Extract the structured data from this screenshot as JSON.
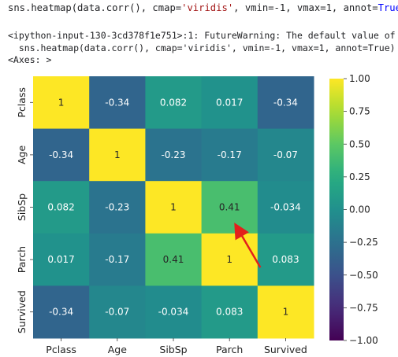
{
  "notebook": {
    "code": {
      "prefix": "sns.heatmap(data.corr(), cmap=",
      "cmap_str": "'viridis'",
      "middle": ", vmin=-1, vmax=1, annot=",
      "annot_kw": "True",
      "suffix": ")"
    },
    "output_lines": [
      "<ipython-input-130-3cd378f1e751>:1: FutureWarning: The default value of",
      "  sns.heatmap(data.corr(), cmap='viridis', vmin=-1, vmax=1, annot=True)",
      "<Axes: >"
    ]
  },
  "chart_data": {
    "type": "heatmap",
    "colormap": "viridis",
    "vmin": -1,
    "vmax": 1,
    "labels": [
      "Pclass",
      "Age",
      "SibSp",
      "Parch",
      "Survived"
    ],
    "matrix": [
      [
        1,
        -0.34,
        0.082,
        0.017,
        -0.34
      ],
      [
        -0.34,
        1,
        -0.23,
        -0.17,
        -0.07
      ],
      [
        0.082,
        -0.23,
        1,
        0.41,
        -0.034
      ],
      [
        0.017,
        -0.17,
        0.41,
        1,
        0.083
      ],
      [
        -0.34,
        -0.07,
        -0.034,
        0.083,
        1
      ]
    ],
    "annotations": [
      [
        "1",
        "-0.34",
        "0.082",
        "0.017",
        "-0.34"
      ],
      [
        "-0.34",
        "1",
        "-0.23",
        "-0.17",
        "-0.07"
      ],
      [
        "0.082",
        "-0.23",
        "1",
        "0.41",
        "-0.034"
      ],
      [
        "0.017",
        "-0.17",
        "0.41",
        "1",
        "0.083"
      ],
      [
        "-0.34",
        "-0.07",
        "-0.034",
        "0.083",
        "1"
      ]
    ],
    "colorbar_ticks": [
      1.0,
      0.75,
      0.5,
      0.25,
      0.0,
      -0.25,
      -0.5,
      -0.75,
      -1.0
    ],
    "colorbar_tick_labels": [
      "1.00",
      "0.75",
      "0.50",
      "0.25",
      "0.00",
      "−0.25",
      "−0.50",
      "−0.75",
      "−1.00"
    ],
    "arrow": {
      "color": "#e3201b",
      "from_cell": [
        3,
        3
      ],
      "to_cell": [
        2,
        3
      ]
    }
  }
}
